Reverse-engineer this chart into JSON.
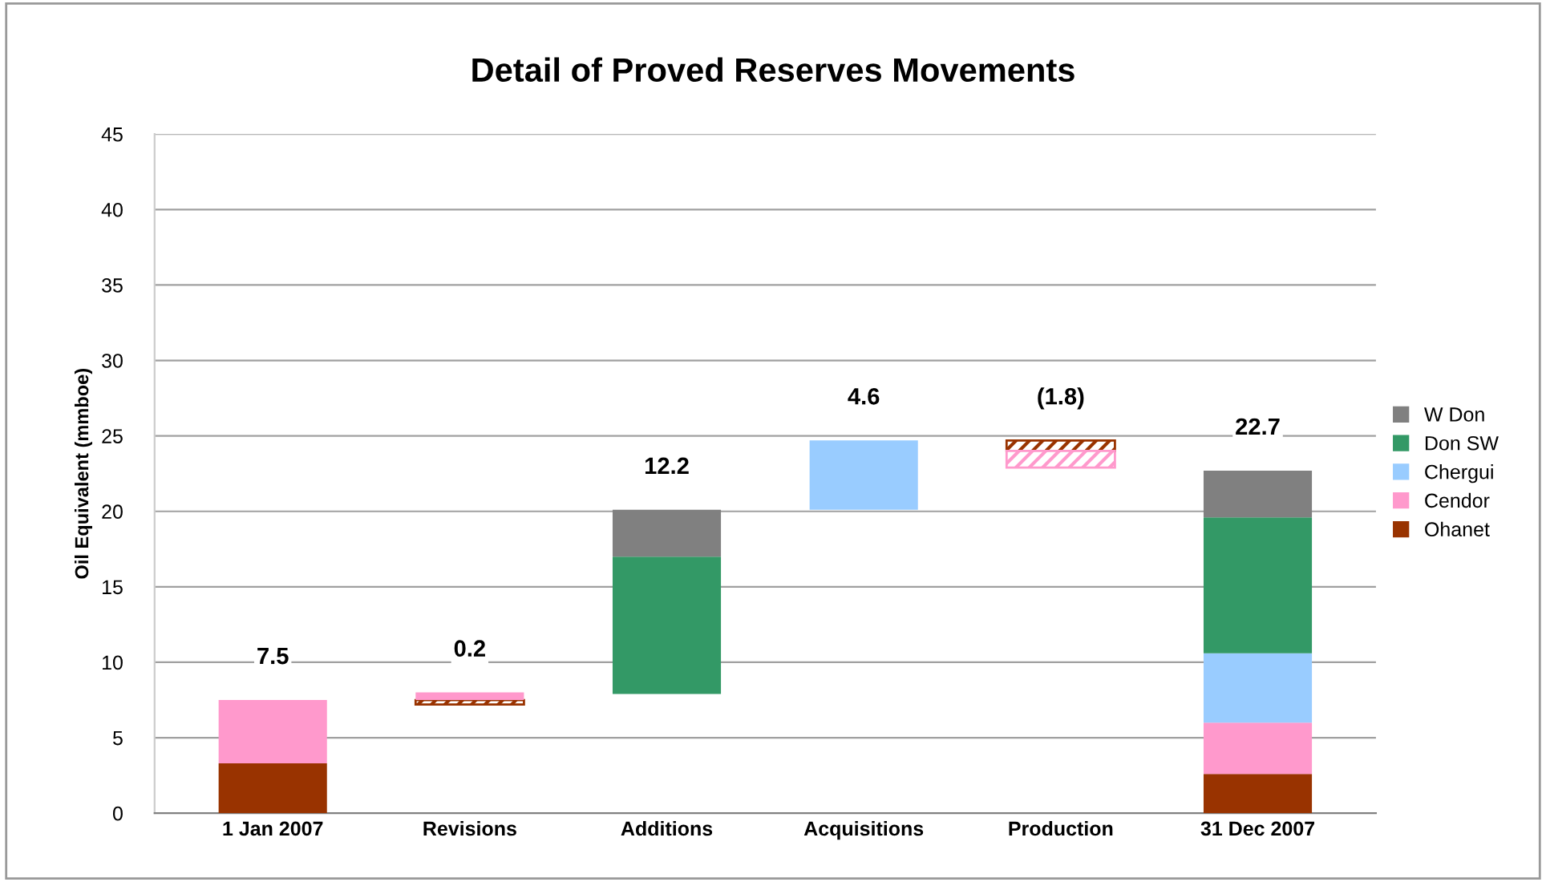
{
  "chart_data": {
    "type": "bar",
    "title": "Detail of Proved Reserves Movements",
    "ylabel": "Oil Equivalent (mmboe)",
    "categories": [
      "1 Jan 2007",
      "Revisions",
      "Additions",
      "Acquisitions",
      "Production",
      "31 Dec 2007"
    ],
    "series": [
      {
        "name": "Ohanet",
        "color": "#993300",
        "values": [
          3.3,
          -0.3,
          null,
          null,
          -0.7,
          2.6
        ],
        "base": [
          0,
          7.5,
          null,
          null,
          24.7,
          0
        ]
      },
      {
        "name": "Cendor",
        "color": "#ff99cc",
        "values": [
          4.2,
          0.5,
          null,
          null,
          -1.1,
          3.4
        ],
        "base": [
          3.3,
          7.5,
          null,
          null,
          24.0,
          2.6
        ]
      },
      {
        "name": "Chergui",
        "color": "#99ccff",
        "values": [
          null,
          null,
          null,
          4.6,
          null,
          4.6
        ],
        "base": [
          null,
          null,
          null,
          20.1,
          null,
          6.0
        ]
      },
      {
        "name": "Don SW",
        "color": "#339966",
        "values": [
          null,
          null,
          9.1,
          null,
          null,
          9.0
        ],
        "base": [
          null,
          null,
          7.9,
          null,
          null,
          10.6
        ]
      },
      {
        "name": "W Don",
        "color": "#808080",
        "values": [
          null,
          null,
          3.1,
          null,
          null,
          3.1
        ],
        "base": [
          null,
          null,
          17.0,
          null,
          null,
          19.6
        ]
      }
    ],
    "totals": [
      "7.5",
      "0.2",
      "12.2",
      "4.6",
      "(1.8)",
      "22.7"
    ],
    "ylim": [
      0,
      45
    ],
    "yticks": [
      0,
      5,
      10,
      15,
      20,
      25,
      30,
      35,
      40,
      45
    ],
    "grid": "y",
    "legend": "right"
  }
}
